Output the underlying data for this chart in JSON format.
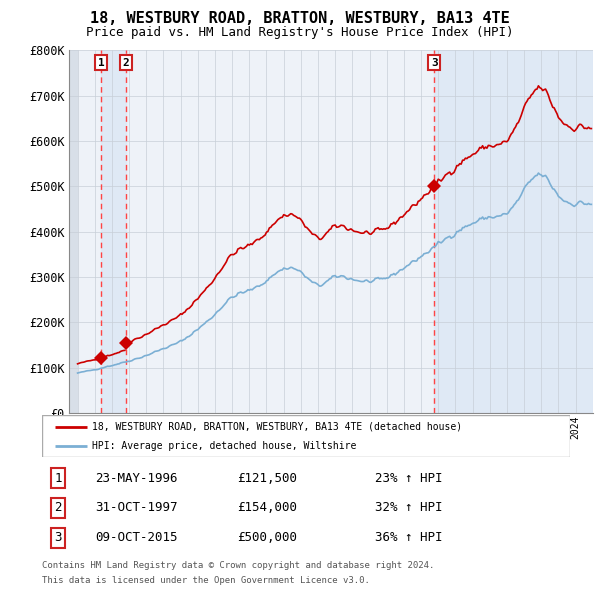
{
  "title": "18, WESTBURY ROAD, BRATTON, WESTBURY, BA13 4TE",
  "subtitle": "Price paid vs. HM Land Registry's House Price Index (HPI)",
  "legend_line1": "18, WESTBURY ROAD, BRATTON, WESTBURY, BA13 4TE (detached house)",
  "legend_line2": "HPI: Average price, detached house, Wiltshire",
  "footer1": "Contains HM Land Registry data © Crown copyright and database right 2024.",
  "footer2": "This data is licensed under the Open Government Licence v3.0.",
  "sale_points": [
    {
      "label": "1",
      "date": "23-MAY-1996",
      "price": 121500,
      "x": 1996.38
    },
    {
      "label": "2",
      "date": "31-OCT-1997",
      "price": 154000,
      "x": 1997.83
    },
    {
      "label": "3",
      "date": "09-OCT-2015",
      "price": 500000,
      "x": 2015.77
    }
  ],
  "table_rows": [
    {
      "num": "1",
      "date": "23-MAY-1996",
      "price": "£121,500",
      "pct": "23% ↑ HPI"
    },
    {
      "num": "2",
      "date": "31-OCT-1997",
      "price": "£154,000",
      "pct": "32% ↑ HPI"
    },
    {
      "num": "3",
      "date": "09-OCT-2015",
      "price": "£500,000",
      "pct": "36% ↑ HPI"
    }
  ],
  "hpi_color": "#7bafd4",
  "price_color": "#cc0000",
  "dashed_color": "#ff4444",
  "chart_bg": "#eef2f8",
  "hatch_bg": "#d8dfe8",
  "band_color": "#dde8f5",
  "grid_color": "#c8cfd8",
  "ylim": [
    0,
    800000
  ],
  "xlim_start": 1994.5,
  "xlim_end": 2025.0,
  "yticks": [
    0,
    100000,
    200000,
    300000,
    400000,
    500000,
    600000,
    700000,
    800000
  ],
  "ylabel_labels": [
    "£0",
    "£100K",
    "£200K",
    "£300K",
    "£400K",
    "£500K",
    "£600K",
    "£700K",
    "£800K"
  ],
  "hpi_monthly_years": [
    1995.0,
    1995.083,
    1995.167,
    1995.25,
    1995.333,
    1995.417,
    1995.5,
    1995.583,
    1995.667,
    1995.75,
    1995.833,
    1995.917,
    1996.0,
    1996.083,
    1996.167,
    1996.25,
    1996.333,
    1996.417,
    1996.5,
    1996.583,
    1996.667,
    1996.75,
    1996.833,
    1996.917,
    1997.0,
    1997.083,
    1997.167,
    1997.25,
    1997.333,
    1997.417,
    1997.5,
    1997.583,
    1997.667,
    1997.75,
    1997.833,
    1997.917,
    1998.0,
    1998.083,
    1998.167,
    1998.25,
    1998.333,
    1998.417,
    1998.5,
    1998.583,
    1998.667,
    1998.75,
    1998.833,
    1998.917,
    1999.0,
    1999.083,
    1999.167,
    1999.25,
    1999.333,
    1999.417,
    1999.5,
    1999.583,
    1999.667,
    1999.75,
    1999.833,
    1999.917,
    2000.0,
    2000.083,
    2000.167,
    2000.25,
    2000.333,
    2000.417,
    2000.5,
    2000.583,
    2000.667,
    2000.75,
    2000.833,
    2000.917,
    2001.0,
    2001.083,
    2001.167,
    2001.25,
    2001.333,
    2001.417,
    2001.5,
    2001.583,
    2001.667,
    2001.75,
    2001.833,
    2001.917,
    2002.0,
    2002.083,
    2002.167,
    2002.25,
    2002.333,
    2002.417,
    2002.5,
    2002.583,
    2002.667,
    2002.75,
    2002.833,
    2002.917,
    2003.0,
    2003.083,
    2003.167,
    2003.25,
    2003.333,
    2003.417,
    2003.5,
    2003.583,
    2003.667,
    2003.75,
    2003.833,
    2003.917,
    2004.0,
    2004.083,
    2004.167,
    2004.25,
    2004.333,
    2004.417,
    2004.5,
    2004.583,
    2004.667,
    2004.75,
    2004.833,
    2004.917,
    2005.0,
    2005.083,
    2005.167,
    2005.25,
    2005.333,
    2005.417,
    2005.5,
    2005.583,
    2005.667,
    2005.75,
    2005.833,
    2005.917,
    2006.0,
    2006.083,
    2006.167,
    2006.25,
    2006.333,
    2006.417,
    2006.5,
    2006.583,
    2006.667,
    2006.75,
    2006.833,
    2006.917,
    2007.0,
    2007.083,
    2007.167,
    2007.25,
    2007.333,
    2007.417,
    2007.5,
    2007.583,
    2007.667,
    2007.75,
    2007.833,
    2007.917,
    2008.0,
    2008.083,
    2008.167,
    2008.25,
    2008.333,
    2008.417,
    2008.5,
    2008.583,
    2008.667,
    2008.75,
    2008.833,
    2008.917,
    2009.0,
    2009.083,
    2009.167,
    2009.25,
    2009.333,
    2009.417,
    2009.5,
    2009.583,
    2009.667,
    2009.75,
    2009.833,
    2009.917,
    2010.0,
    2010.083,
    2010.167,
    2010.25,
    2010.333,
    2010.417,
    2010.5,
    2010.583,
    2010.667,
    2010.75,
    2010.833,
    2010.917,
    2011.0,
    2011.083,
    2011.167,
    2011.25,
    2011.333,
    2011.417,
    2011.5,
    2011.583,
    2011.667,
    2011.75,
    2011.833,
    2011.917,
    2012.0,
    2012.083,
    2012.167,
    2012.25,
    2012.333,
    2012.417,
    2012.5,
    2012.583,
    2012.667,
    2012.75,
    2012.833,
    2012.917,
    2013.0,
    2013.083,
    2013.167,
    2013.25,
    2013.333,
    2013.417,
    2013.5,
    2013.583,
    2013.667,
    2013.75,
    2013.833,
    2013.917,
    2014.0,
    2014.083,
    2014.167,
    2014.25,
    2014.333,
    2014.417,
    2014.5,
    2014.583,
    2014.667,
    2014.75,
    2014.833,
    2014.917,
    2015.0,
    2015.083,
    2015.167,
    2015.25,
    2015.333,
    2015.417,
    2015.5,
    2015.583,
    2015.667,
    2015.75,
    2015.833,
    2015.917,
    2016.0,
    2016.083,
    2016.167,
    2016.25,
    2016.333,
    2016.417,
    2016.5,
    2016.583,
    2016.667,
    2016.75,
    2016.833,
    2016.917,
    2017.0,
    2017.083,
    2017.167,
    2017.25,
    2017.333,
    2017.417,
    2017.5,
    2017.583,
    2017.667,
    2017.75,
    2017.833,
    2017.917,
    2018.0,
    2018.083,
    2018.167,
    2018.25,
    2018.333,
    2018.417,
    2018.5,
    2018.583,
    2018.667,
    2018.75,
    2018.833,
    2018.917,
    2019.0,
    2019.083,
    2019.167,
    2019.25,
    2019.333,
    2019.417,
    2019.5,
    2019.583,
    2019.667,
    2019.75,
    2019.833,
    2019.917,
    2020.0,
    2020.083,
    2020.167,
    2020.25,
    2020.333,
    2020.417,
    2020.5,
    2020.583,
    2020.667,
    2020.75,
    2020.833,
    2020.917,
    2021.0,
    2021.083,
    2021.167,
    2021.25,
    2021.333,
    2021.417,
    2021.5,
    2021.583,
    2021.667,
    2021.75,
    2021.833,
    2021.917,
    2022.0,
    2022.083,
    2022.167,
    2022.25,
    2022.333,
    2022.417,
    2022.5,
    2022.583,
    2022.667,
    2022.75,
    2022.833,
    2022.917,
    2023.0,
    2023.083,
    2023.167,
    2023.25,
    2023.333,
    2023.417,
    2023.5,
    2023.583,
    2023.667,
    2023.75,
    2023.833,
    2023.917,
    2024.0,
    2024.083,
    2024.167,
    2024.25,
    2024.333,
    2024.417,
    2024.5,
    2024.583,
    2024.667,
    2024.75,
    2024.833,
    2024.917
  ]
}
